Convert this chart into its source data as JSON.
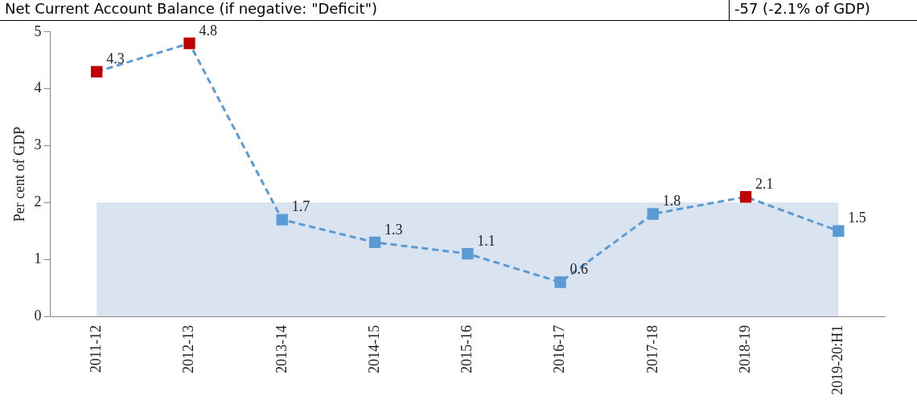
{
  "chart_data": {
    "type": "line",
    "annotations": [
      "Net Current Account Balance (if negative: \"Deficit\")",
      "-57 (-2.1% of GDP)"
    ],
    "ylabel": "Per cent of GDP",
    "categories": [
      "2011-12",
      "2012-13",
      "2013-14",
      "2014-15",
      "2015-16",
      "2016-17",
      "2017-18",
      "2018-19",
      "2019-20:H1"
    ],
    "series": [
      {
        "color": "#5b9bd5",
        "colors": [
          "#c00000",
          "#c00000",
          "#5b9bd5",
          "#5b9bd5",
          "#5b9bd5",
          "#5b9bd5",
          "#5b9bd5",
          "#c00000",
          "#5b9bd5"
        ],
        "values": [
          4.3,
          4.8,
          1.7,
          1.3,
          1.1,
          0.6,
          1.8,
          2.1,
          1.5
        ]
      }
    ],
    "ylim": [
      0,
      5
    ],
    "yticks": [
      0,
      1,
      2,
      3,
      4,
      5
    ],
    "grid": false,
    "legend": false,
    "marker": "square",
    "line_style": "dashed",
    "data_labels": true,
    "bands": [
      {
        "axis": "y",
        "from": 0,
        "to": 2,
        "color": "#dae3f0"
      }
    ]
  }
}
